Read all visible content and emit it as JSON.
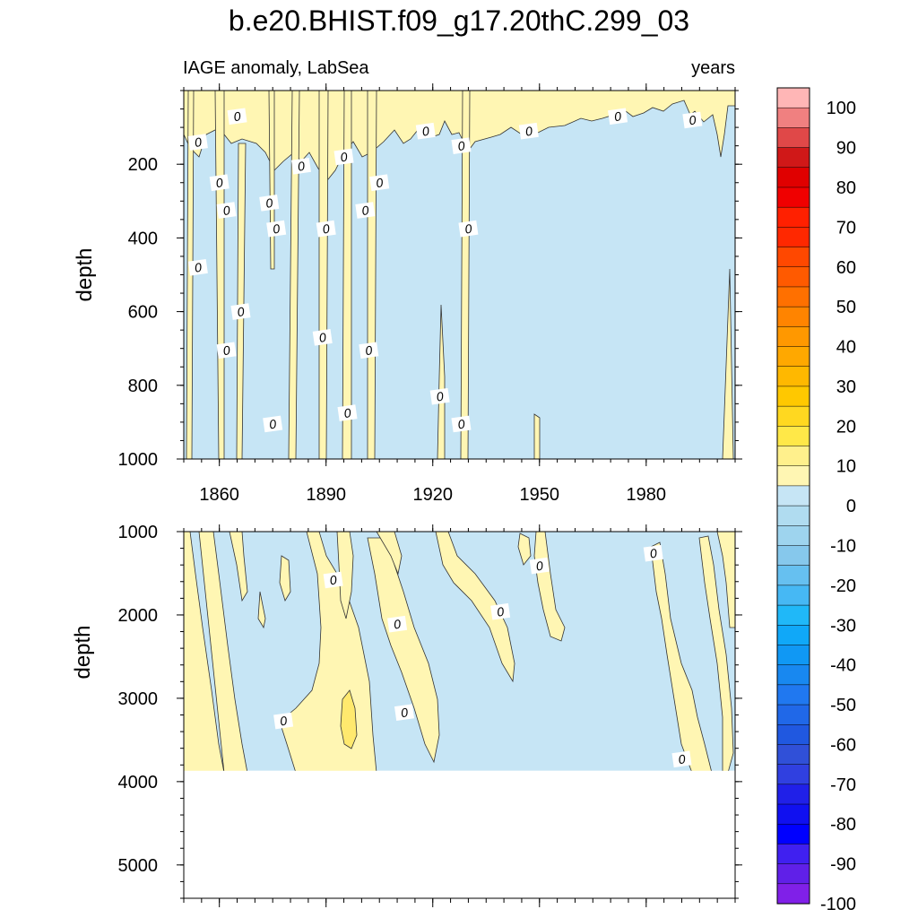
{
  "title": "b.e20.BHIST.f09_g17.20thC.299_03",
  "colors": {
    "positive_fill": "#fff6b3",
    "negative_fill": "#c6e5f5",
    "deep_positive_fill": "#ffe96e",
    "contour_line": "#333333"
  },
  "chart_data": [
    {
      "type": "contour",
      "panel": "upper",
      "left_title": "IAGE anomaly, LabSea",
      "right_title": "years",
      "ylabel": "depth",
      "xlabel": "",
      "x_range": [
        1850,
        2005
      ],
      "y_range": [
        0,
        1000
      ],
      "y_reversed": true,
      "x_ticks": [
        1860,
        1890,
        1920,
        1950,
        1980
      ],
      "y_ticks": [
        200,
        400,
        600,
        800,
        1000
      ],
      "contour_labels": [
        {
          "text": "0",
          "x": 1854,
          "y": 140
        },
        {
          "text": "0",
          "x": 1865,
          "y": 70
        },
        {
          "text": "0",
          "x": 1860,
          "y": 250
        },
        {
          "text": "0",
          "x": 1862,
          "y": 325
        },
        {
          "text": "0",
          "x": 1854,
          "y": 480
        },
        {
          "text": "0",
          "x": 1866,
          "y": 600
        },
        {
          "text": "0",
          "x": 1862,
          "y": 705
        },
        {
          "text": "0",
          "x": 1874,
          "y": 305
        },
        {
          "text": "0",
          "x": 1876,
          "y": 375
        },
        {
          "text": "0",
          "x": 1875,
          "y": 905
        },
        {
          "text": "0",
          "x": 1883,
          "y": 205
        },
        {
          "text": "0",
          "x": 1890,
          "y": 375
        },
        {
          "text": "0",
          "x": 1889,
          "y": 670
        },
        {
          "text": "0",
          "x": 1895,
          "y": 180
        },
        {
          "text": "0",
          "x": 1896,
          "y": 875
        },
        {
          "text": "0",
          "x": 1901,
          "y": 325
        },
        {
          "text": "0",
          "x": 1902,
          "y": 705
        },
        {
          "text": "0",
          "x": 1905,
          "y": 250
        },
        {
          "text": "0",
          "x": 1918,
          "y": 110
        },
        {
          "text": "0",
          "x": 1922,
          "y": 830
        },
        {
          "text": "0",
          "x": 1928,
          "y": 150
        },
        {
          "text": "0",
          "x": 1930,
          "y": 375
        },
        {
          "text": "0",
          "x": 1928,
          "y": 905
        },
        {
          "text": "0",
          "x": 1947,
          "y": 110
        },
        {
          "text": "0",
          "x": 1972,
          "y": 70
        },
        {
          "text": "0",
          "x": 1993,
          "y": 80
        }
      ]
    },
    {
      "type": "contour",
      "panel": "lower",
      "ylabel": "depth",
      "xlabel": "",
      "x_range": [
        1850,
        2005
      ],
      "y_range": [
        1000,
        5400
      ],
      "y_reversed": true,
      "x_ticks": [
        1860,
        1890,
        1920,
        1950,
        1980
      ],
      "y_ticks": [
        1000,
        2000,
        3000,
        4000,
        5000
      ],
      "no_data_below": 3870,
      "contour_labels": [
        {
          "text": "0",
          "x": 1878,
          "y": 3270
        },
        {
          "text": "0",
          "x": 1892,
          "y": 1580
        },
        {
          "text": "0",
          "x": 1910,
          "y": 2110
        },
        {
          "text": "0",
          "x": 1912,
          "y": 3170
        },
        {
          "text": "0",
          "x": 1939,
          "y": 1960
        },
        {
          "text": "0",
          "x": 1950,
          "y": 1410
        },
        {
          "text": "0",
          "x": 1982,
          "y": 1260
        },
        {
          "text": "0",
          "x": 1990,
          "y": 3730
        }
      ]
    }
  ],
  "colorbar": {
    "labels": [
      "100",
      "90",
      "80",
      "70",
      "60",
      "50",
      "40",
      "30",
      "20",
      "10",
      "0",
      "-10",
      "-20",
      "-30",
      "-40",
      "-50",
      "-60",
      "-70",
      "-80",
      "-90",
      "-100"
    ],
    "colors": [
      "#ffb6b6",
      "#f08080",
      "#e04848",
      "#d01818",
      "#e00000",
      "#f00000",
      "#ff2000",
      "#ff2800",
      "#ff4800",
      "#ff5a00",
      "#ff7000",
      "#ff8400",
      "#ff9800",
      "#ffa800",
      "#ffb800",
      "#ffc800",
      "#ffd820",
      "#ffe848",
      "#fff08c",
      "#fff6b3",
      "#c6e5f5",
      "#b0dcf0",
      "#9ed4ee",
      "#86c8ec",
      "#66c0f0",
      "#46b8f4",
      "#20b8f8",
      "#10a8f8",
      "#1098f4",
      "#1888f0",
      "#2078f0",
      "#2068e8",
      "#2058e0",
      "#3050d8",
      "#3040e0",
      "#2020e8",
      "#1010f0",
      "#0000ff",
      "#4020f0",
      "#6020e8",
      "#8020e8"
    ]
  }
}
